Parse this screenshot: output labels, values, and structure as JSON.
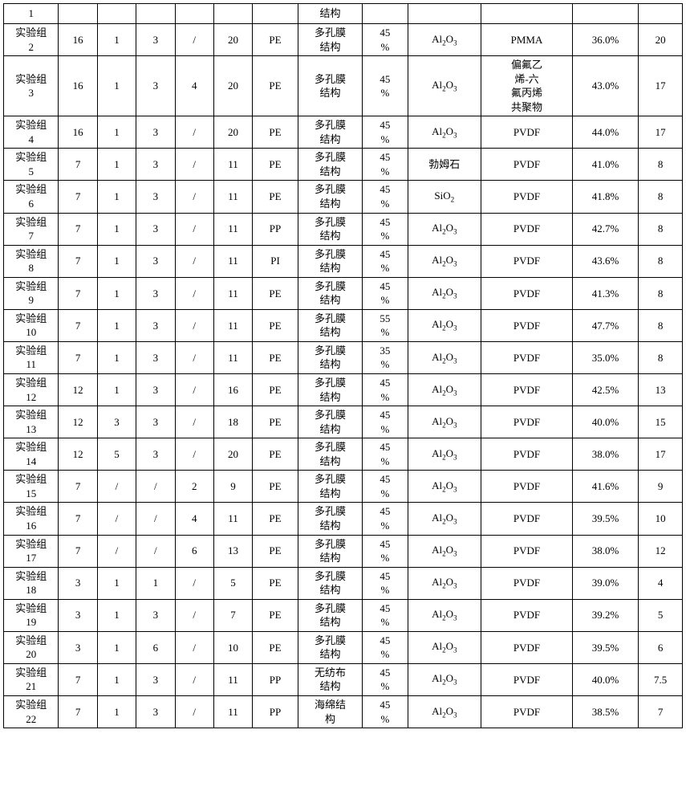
{
  "table": {
    "col_widths_pct": [
      7.5,
      5.3,
      5.3,
      5.3,
      5.3,
      5.3,
      6.2,
      8.8,
      6.2,
      10.0,
      12.5,
      9.0,
      6.0
    ],
    "rows": [
      [
        "1",
        "",
        "",
        "",
        "",
        "",
        "",
        "结构",
        "",
        "",
        "",
        "",
        ""
      ],
      [
        "实验组2",
        "16",
        "1",
        "3",
        "/",
        "20",
        "PE",
        "多孔膜结构",
        "45%",
        "Al₂O₃",
        "PMMA",
        "36.0%",
        "20"
      ],
      [
        "实验组3",
        "16",
        "1",
        "3",
        "4",
        "20",
        "PE",
        "多孔膜结构",
        "45%",
        "Al₂O₃",
        "偏氟乙烯-六氟丙烯共聚物",
        "43.0%",
        "17"
      ],
      [
        "实验组4",
        "16",
        "1",
        "3",
        "/",
        "20",
        "PE",
        "多孔膜结构",
        "45%",
        "Al₂O₃",
        "PVDF",
        "44.0%",
        "17"
      ],
      [
        "实验组5",
        "7",
        "1",
        "3",
        "/",
        "11",
        "PE",
        "多孔膜结构",
        "45%",
        "勃姆石",
        "PVDF",
        "41.0%",
        "8"
      ],
      [
        "实验组6",
        "7",
        "1",
        "3",
        "/",
        "11",
        "PE",
        "多孔膜结构",
        "45%",
        "SiO₂",
        "PVDF",
        "41.8%",
        "8"
      ],
      [
        "实验组7",
        "7",
        "1",
        "3",
        "/",
        "11",
        "PP",
        "多孔膜结构",
        "45%",
        "Al₂O₃",
        "PVDF",
        "42.7%",
        "8"
      ],
      [
        "实验组8",
        "7",
        "1",
        "3",
        "/",
        "11",
        "PI",
        "多孔膜结构",
        "45%",
        "Al₂O₃",
        "PVDF",
        "43.6%",
        "8"
      ],
      [
        "实验组9",
        "7",
        "1",
        "3",
        "/",
        "11",
        "PE",
        "多孔膜结构",
        "45%",
        "Al₂O₃",
        "PVDF",
        "41.3%",
        "8"
      ],
      [
        "实验组10",
        "7",
        "1",
        "3",
        "/",
        "11",
        "PE",
        "多孔膜结构",
        "55%",
        "Al₂O₃",
        "PVDF",
        "47.7%",
        "8"
      ],
      [
        "实验组11",
        "7",
        "1",
        "3",
        "/",
        "11",
        "PE",
        "多孔膜结构",
        "35%",
        "Al₂O₃",
        "PVDF",
        "35.0%",
        "8"
      ],
      [
        "实验组12",
        "12",
        "1",
        "3",
        "/",
        "16",
        "PE",
        "多孔膜结构",
        "45%",
        "Al₂O₃",
        "PVDF",
        "42.5%",
        "13"
      ],
      [
        "实验组13",
        "12",
        "3",
        "3",
        "/",
        "18",
        "PE",
        "多孔膜结构",
        "45%",
        "Al₂O₃",
        "PVDF",
        "40.0%",
        "15"
      ],
      [
        "实验组14",
        "12",
        "5",
        "3",
        "/",
        "20",
        "PE",
        "多孔膜结构",
        "45%",
        "Al₂O₃",
        "PVDF",
        "38.0%",
        "17"
      ],
      [
        "实验组15",
        "7",
        "/",
        "/",
        "2",
        "9",
        "PE",
        "多孔膜结构",
        "45%",
        "Al₂O₃",
        "PVDF",
        "41.6%",
        "9"
      ],
      [
        "实验组16",
        "7",
        "/",
        "/",
        "4",
        "11",
        "PE",
        "多孔膜结构",
        "45%",
        "Al₂O₃",
        "PVDF",
        "39.5%",
        "10"
      ],
      [
        "实验组17",
        "7",
        "/",
        "/",
        "6",
        "13",
        "PE",
        "多孔膜结构",
        "45%",
        "Al₂O₃",
        "PVDF",
        "38.0%",
        "12"
      ],
      [
        "实验组18",
        "3",
        "1",
        "1",
        "/",
        "5",
        "PE",
        "多孔膜结构",
        "45%",
        "Al₂O₃",
        "PVDF",
        "39.0%",
        "4"
      ],
      [
        "实验组19",
        "3",
        "1",
        "3",
        "/",
        "7",
        "PE",
        "多孔膜结构",
        "45%",
        "Al₂O₃",
        "PVDF",
        "39.2%",
        "5"
      ],
      [
        "实验组20",
        "3",
        "1",
        "6",
        "/",
        "10",
        "PE",
        "多孔膜结构",
        "45%",
        "Al₂O₃",
        "PVDF",
        "39.5%",
        "6"
      ],
      [
        "实验组21",
        "7",
        "1",
        "3",
        "/",
        "11",
        "PP",
        "无纺布结构",
        "45%",
        "Al₂O₃",
        "PVDF",
        "40.0%",
        "7.5"
      ],
      [
        "实验组22",
        "7",
        "1",
        "3",
        "/",
        "11",
        "PP",
        "海绵结构",
        "45%",
        "Al₂O₃",
        "PVDF",
        "38.5%",
        "7"
      ]
    ]
  }
}
